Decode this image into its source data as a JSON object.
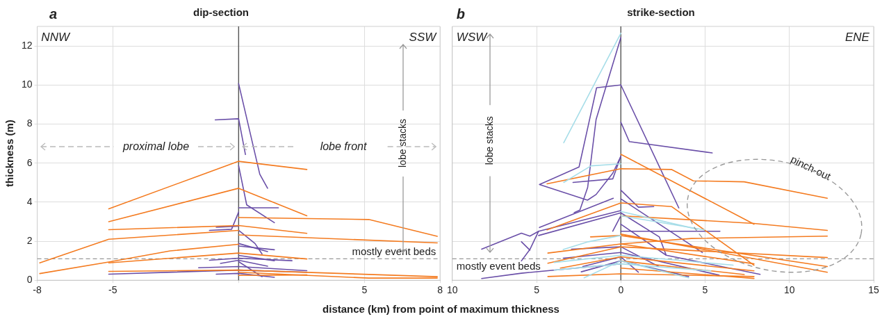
{
  "chart_data": [
    {
      "type": "line",
      "title": "dip-section",
      "xlabel": "distance (km) from point of maximum thickness",
      "ylabel": "thickness (m)",
      "xlim": [
        -8,
        8
      ],
      "xticks": [
        -8,
        -5,
        {
          "value": 0,
          "label": null
        },
        5,
        8
      ],
      "ylim": [
        0,
        13
      ],
      "yticks": [
        0,
        2,
        4,
        6,
        8,
        10,
        12
      ],
      "grid": true,
      "legend": false,
      "marker": "none",
      "line_style": "solid",
      "annotations": [
        "a",
        "NNW",
        "SSW",
        "proximal lobe",
        "lobe front",
        "lobe stacks"
      ],
      "ref_lines": [
        {
          "axis": "x",
          "value": 0,
          "label": null,
          "color": "#555555",
          "line_style": "solid"
        },
        {
          "axis": "y",
          "value": 1.1,
          "label": "mostly event beds",
          "color": "#999999",
          "line_style": "dashed"
        }
      ],
      "series": [
        {
          "type": "line",
          "color": "#f47b20",
          "x": [
            -5.16,
            0,
            2.71
          ],
          "values": [
            3.66,
            6.09,
            5.67
          ]
        },
        {
          "type": "line",
          "color": "#f47b20",
          "x": [
            -5.16,
            0,
            2.71
          ],
          "values": [
            3.0,
            4.71,
            3.3
          ]
        },
        {
          "type": "line",
          "color": "#f47b20",
          "x": [
            -5.16,
            0,
            2.71
          ],
          "values": [
            2.59,
            2.8,
            2.4
          ]
        },
        {
          "type": "line",
          "color": "#f47b20",
          "x": [
            -7.9,
            -5.16,
            0
          ],
          "values": [
            0.89,
            2.1,
            2.55
          ]
        },
        {
          "type": "line",
          "color": "#f47b20",
          "x": [
            0,
            5.17,
            7.89
          ],
          "values": [
            3.21,
            3.11,
            2.25
          ]
        },
        {
          "type": "line",
          "color": "#f47b20",
          "x": [
            0,
            7.89
          ],
          "values": [
            2.32,
            1.91
          ]
        },
        {
          "type": "line",
          "color": "#f47b20",
          "x": [
            -7.9,
            -5.16,
            -2.72,
            0
          ],
          "values": [
            0.34,
            0.93,
            1.5,
            1.84
          ]
        },
        {
          "type": "line",
          "color": "#f47b20",
          "x": [
            -5.16,
            0,
            2.71
          ],
          "values": [
            0.89,
            1.39,
            1.09
          ]
        },
        {
          "type": "line",
          "color": "#f47b20",
          "x": [
            -5.16,
            0,
            7.89
          ],
          "values": [
            0.45,
            0.52,
            0.18
          ]
        },
        {
          "type": "line",
          "color": "#f47b20",
          "x": [
            0,
            5.17,
            7.89
          ],
          "values": [
            0.41,
            0.11,
            0.11
          ]
        },
        {
          "type": "line",
          "color": "#f47b20",
          "x": [
            0,
            2.71
          ],
          "values": [
            0.25,
            0.27
          ]
        },
        {
          "type": "line",
          "color": "#6a4fa8",
          "x": [
            0,
            0.84,
            1.15
          ],
          "values": [
            10.07,
            5.43,
            4.71
          ]
        },
        {
          "type": "line",
          "color": "#6a4fa8",
          "x": [
            -0.93,
            0,
            0.27
          ],
          "values": [
            8.21,
            8.27,
            6.44
          ]
        },
        {
          "type": "line",
          "color": "#6a4fa8",
          "x": [
            0,
            0.32,
            1.42
          ],
          "values": [
            5.87,
            3.86,
            2.95
          ]
        },
        {
          "type": "line",
          "color": "#6a4fa8",
          "x": [
            0,
            1.58
          ],
          "values": [
            3.71,
            3.71
          ]
        },
        {
          "type": "line",
          "color": "#6a4fa8",
          "x": [
            -1.16,
            -0.28,
            0
          ],
          "values": [
            2.55,
            2.61,
            3.49
          ]
        },
        {
          "type": "line",
          "color": "#6a4fa8",
          "x": [
            -0.89,
            0
          ],
          "values": [
            2.71,
            2.77
          ]
        },
        {
          "type": "line",
          "color": "#6a4fa8",
          "x": [
            0,
            0.65,
            0.93
          ],
          "values": [
            2.56,
            1.88,
            1.34
          ]
        },
        {
          "type": "line",
          "color": "#6a4fa8",
          "x": [
            0,
            1.42
          ],
          "values": [
            1.75,
            1.56
          ]
        },
        {
          "type": "line",
          "color": "#6a4fa8",
          "x": [
            0,
            1.15
          ],
          "values": [
            1.88,
            1.47
          ]
        },
        {
          "type": "line",
          "color": "#6a4fa8",
          "x": [
            -1.16,
            0,
            2.12
          ],
          "values": [
            1.02,
            1.13,
            1.0
          ]
        },
        {
          "type": "line",
          "color": "#6a4fa8",
          "x": [
            -0.72,
            0,
            1.15
          ],
          "values": [
            0.86,
            1.02,
            0.72
          ]
        },
        {
          "type": "line",
          "color": "#6a4fa8",
          "x": [
            -1.59,
            0,
            2.71
          ],
          "values": [
            0.64,
            0.7,
            0.49
          ]
        },
        {
          "type": "line",
          "color": "#6a4fa8",
          "x": [
            -5.16,
            0,
            2.71
          ],
          "values": [
            0.31,
            0.52,
            0.41
          ]
        },
        {
          "type": "line",
          "color": "#6a4fa8",
          "x": [
            -0.89,
            0,
            1.42
          ],
          "values": [
            0.31,
            0.35,
            0.15
          ]
        },
        {
          "type": "line",
          "color": "#6a4fa8",
          "x": [
            0,
            0.93
          ],
          "values": [
            0.95,
            0.18
          ]
        },
        {
          "type": "line",
          "color": "#6a4fa8",
          "x": [
            0,
            1.42
          ],
          "values": [
            1.27,
            1.0
          ]
        }
      ]
    },
    {
      "type": "line",
      "title": "strike-section",
      "xlim": [
        -10,
        15
      ],
      "xticks": [
        {
          "value": -10,
          "label": "10"
        },
        {
          "value": -5,
          "label": "5"
        },
        0,
        5,
        10,
        15
      ],
      "ylim": [
        0,
        13
      ],
      "yticks": [
        0,
        2,
        4,
        6,
        8,
        10,
        12
      ],
      "tick_labels": "x",
      "grid": true,
      "legend": false,
      "marker": "none",
      "line_style": "solid",
      "annotations": [
        "b",
        "WSW",
        "ENE",
        "lobe stacks",
        "pinch-out"
      ],
      "ref_lines": [
        {
          "axis": "x",
          "value": 0,
          "label": null,
          "color": "#555555",
          "line_style": "solid"
        },
        {
          "axis": "y",
          "value": 1.1,
          "label": "mostly event beds",
          "color": "#999999",
          "line_style": "dashed"
        }
      ],
      "series": [
        {
          "type": "line",
          "color": "#a6dde8",
          "x": [
            -3.39,
            0
          ],
          "values": [
            7.04,
            12.65
          ]
        },
        {
          "type": "line",
          "color": "#a6dde8",
          "x": [
            -3.39,
            -1.77,
            0
          ],
          "values": [
            5.01,
            5.86,
            5.96
          ]
        },
        {
          "type": "line",
          "color": "#a6dde8",
          "x": [
            0,
            4.96
          ],
          "values": [
            3.3,
            2.58
          ]
        },
        {
          "type": "line",
          "color": "#a6dde8",
          "x": [
            -3.42,
            -1.93,
            0
          ],
          "values": [
            1.57,
            1.97,
            2.29
          ]
        },
        {
          "type": "line",
          "color": "#a6dde8",
          "x": [
            -3.95,
            0,
            6.66
          ],
          "values": [
            0.91,
            1.28,
            0.77
          ]
        },
        {
          "type": "line",
          "color": "#a6dde8",
          "x": [
            -3.95,
            0,
            5.34
          ],
          "values": [
            0.52,
            0.84,
            0.48
          ]
        },
        {
          "type": "line",
          "color": "#a6dde8",
          "x": [
            -2.18,
            0,
            4.02
          ],
          "values": [
            0.12,
            0.99,
            0.12
          ]
        },
        {
          "type": "line",
          "color": "#a6dde8",
          "x": [
            0,
            4.55
          ],
          "values": [
            3.52,
            2.61
          ]
        },
        {
          "type": "line",
          "color": "#f47b20",
          "x": [
            0,
            7.9
          ],
          "values": [
            6.45,
            2.87
          ]
        },
        {
          "type": "line",
          "color": "#f47b20",
          "x": [
            -4.38,
            0,
            3.02,
            4.3,
            7.32,
            12.25
          ],
          "values": [
            4.94,
            5.71,
            5.67,
            5.09,
            5.04,
            4.2
          ]
        },
        {
          "type": "line",
          "color": "#f47b20",
          "x": [
            -4.38,
            0,
            3.02,
            7.9
          ],
          "values": [
            2.58,
            3.96,
            3.77,
            0.77
          ]
        },
        {
          "type": "line",
          "color": "#f47b20",
          "x": [
            0,
            7.9,
            12.25
          ],
          "values": [
            3.3,
            2.91,
            2.55
          ]
        },
        {
          "type": "line",
          "color": "#f47b20",
          "x": [
            0,
            12.25
          ],
          "values": [
            2.36,
            0.41
          ]
        },
        {
          "type": "line",
          "color": "#f47b20",
          "x": [
            0,
            4.18,
            12.25
          ],
          "values": [
            1.86,
            2.14,
            2.26
          ]
        },
        {
          "type": "line",
          "color": "#f47b20",
          "x": [
            -4.33,
            0,
            7.9
          ],
          "values": [
            1.39,
            1.86,
            0.84
          ]
        },
        {
          "type": "line",
          "color": "#f47b20",
          "x": [
            -4.33,
            0,
            12.25
          ],
          "values": [
            0.87,
            1.71,
            1.16
          ]
        },
        {
          "type": "line",
          "color": "#f47b20",
          "x": [
            -4.33,
            0,
            7.9
          ],
          "values": [
            0.19,
            0.33,
            0.19
          ]
        },
        {
          "type": "line",
          "color": "#f47b20",
          "x": [
            -1.8,
            0,
            12.25
          ],
          "values": [
            2.22,
            2.29,
            0.7
          ]
        },
        {
          "type": "line",
          "color": "#f47b20",
          "x": [
            0,
            7.32
          ],
          "values": [
            0.99,
            0.29
          ]
        },
        {
          "type": "line",
          "color": "#f47b20",
          "x": [
            0,
            7.9
          ],
          "values": [
            0.62,
            0.09
          ]
        },
        {
          "type": "line",
          "color": "#f47b20",
          "x": [
            -3.59,
            0,
            7.9
          ],
          "values": [
            0.62,
            1.2,
            0.48
          ]
        },
        {
          "type": "line",
          "color": "#6a4fa8",
          "x": [
            0,
            -1.47,
            -1.97,
            -2.43,
            -2.77
          ],
          "values": [
            12.43,
            8.23,
            4.75,
            3.59,
            3.46
          ]
        },
        {
          "type": "line",
          "color": "#6a4fa8",
          "x": [
            0,
            -1.44,
            -1.93,
            -2.48,
            -4.83,
            -1.98,
            -1.47,
            -0.48,
            0
          ],
          "values": [
            10.0,
            9.86,
            7.94,
            5.8,
            4.9,
            4.1,
            4.39,
            5.48,
            6.35
          ]
        },
        {
          "type": "line",
          "color": "#6a4fa8",
          "x": [
            0,
            3.44
          ],
          "values": [
            10.0,
            3.7
          ]
        },
        {
          "type": "line",
          "color": "#6a4fa8",
          "x": [
            0,
            0.5,
            5.42
          ],
          "values": [
            8.09,
            7.1,
            6.52
          ]
        },
        {
          "type": "line",
          "color": "#6a4fa8",
          "x": [
            -2.84,
            -0.48,
            0
          ],
          "values": [
            5.01,
            5.19,
            6.35
          ]
        },
        {
          "type": "line",
          "color": "#6a4fa8",
          "x": [
            -4.83,
            -0.45
          ],
          "values": [
            2.7,
            4.2
          ]
        },
        {
          "type": "line",
          "color": "#6a4fa8",
          "x": [
            0,
            1.04,
            1.95
          ],
          "values": [
            4.61,
            3.74,
            3.77
          ]
        },
        {
          "type": "line",
          "color": "#6a4fa8",
          "x": [
            -8.26,
            -5.9,
            -5.4,
            -4.88,
            0
          ],
          "values": [
            1.59,
            2.41,
            2.26,
            2.51,
            3.57
          ]
        },
        {
          "type": "line",
          "color": "#6a4fa8",
          "x": [
            -4.88,
            0
          ],
          "values": [
            2.29,
            3.45
          ]
        },
        {
          "type": "line",
          "color": "#6a4fa8",
          "x": [
            -5.9,
            -5.4,
            -4.88
          ],
          "values": [
            0.99,
            1.57,
            2.51
          ]
        },
        {
          "type": "line",
          "color": "#6a4fa8",
          "x": [
            -5.9,
            -5.4
          ],
          "values": [
            1.97,
            1.54
          ]
        },
        {
          "type": "line",
          "color": "#6a4fa8",
          "x": [
            -8.26,
            -5.9,
            0
          ],
          "values": [
            0.09,
            0.36,
            0.84
          ]
        },
        {
          "type": "line",
          "color": "#6a4fa8",
          "x": [
            0,
            4.84
          ],
          "values": [
            4.17,
            1.42
          ]
        },
        {
          "type": "line",
          "color": "#6a4fa8",
          "x": [
            0,
            2.69,
            8.26
          ],
          "values": [
            2.87,
            1.28,
            0.3
          ]
        },
        {
          "type": "line",
          "color": "#6a4fa8",
          "x": [
            0,
            5.88
          ],
          "values": [
            2.51,
            2.51
          ]
        },
        {
          "type": "line",
          "color": "#6a4fa8",
          "x": [
            0,
            2.28,
            2.69
          ],
          "values": [
            3.45,
            2.22,
            1.28
          ]
        },
        {
          "type": "line",
          "color": "#6a4fa8",
          "x": [
            -0.48,
            0
          ],
          "values": [
            2.51,
            3.3
          ]
        },
        {
          "type": "line",
          "color": "#6a4fa8",
          "x": [
            -2.93,
            0,
            2.25
          ],
          "values": [
            1.59,
            1.71,
            0.7
          ]
        },
        {
          "type": "line",
          "color": "#6a4fa8",
          "x": [
            -3.42,
            0,
            5.83
          ],
          "values": [
            1.13,
            1.42,
            0.26
          ]
        },
        {
          "type": "line",
          "color": "#6a4fa8",
          "x": [
            -2.35,
            0,
            4.02
          ],
          "values": [
            0.43,
            0.99,
            0.19
          ]
        },
        {
          "type": "line",
          "color": "#6a4fa8",
          "x": [
            -2.26,
            0,
            1.04
          ],
          "values": [
            0.7,
            1.2,
            0.41
          ]
        }
      ]
    }
  ]
}
